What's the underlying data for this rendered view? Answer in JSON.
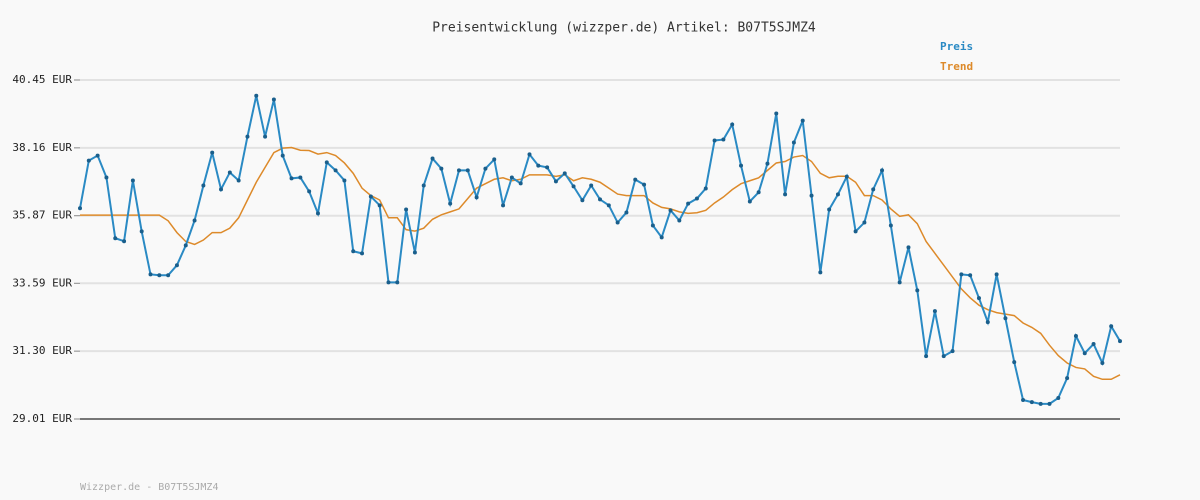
{
  "chart_data": {
    "type": "line",
    "title": "Preisentwicklung (wizzper.de) Artikel: B07T5SJMZ4",
    "footer": "Wizzper.de - B07T5SJMZ4",
    "ylim": [
      29.01,
      40.45
    ],
    "yticks": [
      {
        "value": 29.01,
        "label": "29.01 EUR"
      },
      {
        "value": 31.3,
        "label": "31.30 EUR"
      },
      {
        "value": 33.59,
        "label": "33.59 EUR"
      },
      {
        "value": 35.87,
        "label": "35.87 EUR"
      },
      {
        "value": 38.16,
        "label": "38.16 EUR"
      },
      {
        "value": 40.45,
        "label": "40.45 EUR"
      }
    ],
    "grid": true,
    "legend": "top-right",
    "series": [
      {
        "name": "Preis",
        "color": "#2a8ac4",
        "markers": true,
        "values": [
          36.12,
          37.73,
          37.9,
          37.16,
          35.11,
          35.01,
          37.06,
          35.34,
          33.89,
          33.86,
          33.86,
          34.2,
          34.87,
          35.71,
          36.89,
          38.0,
          36.76,
          37.33,
          37.06,
          38.54,
          39.92,
          38.54,
          39.79,
          37.9,
          37.13,
          37.16,
          36.69,
          35.95,
          37.67,
          37.4,
          37.06,
          34.67,
          34.6,
          36.52,
          36.22,
          33.62,
          33.62,
          36.08,
          34.63,
          36.89,
          37.8,
          37.46,
          36.28,
          37.4,
          37.4,
          36.49,
          37.46,
          37.77,
          36.22,
          37.16,
          36.96,
          37.94,
          37.56,
          37.5,
          37.03,
          37.3,
          36.86,
          36.39,
          36.89,
          36.42,
          36.22,
          35.64,
          35.98,
          37.09,
          36.92,
          35.54,
          35.14,
          36.05,
          35.71,
          36.28,
          36.45,
          36.79,
          38.41,
          38.44,
          38.95,
          37.56,
          36.35,
          36.66,
          37.63,
          39.32,
          36.59,
          38.34,
          39.08,
          36.55,
          33.96,
          36.08,
          36.59,
          37.19,
          35.34,
          35.64,
          36.76,
          37.4,
          35.54,
          33.62,
          34.8,
          33.35,
          31.13,
          32.65,
          31.13,
          31.3,
          33.89,
          33.86,
          33.09,
          32.28,
          33.89,
          32.41,
          30.93,
          29.65,
          29.58,
          29.52,
          29.52,
          29.72,
          30.39,
          31.81,
          31.23,
          31.54,
          30.9,
          32.14,
          31.64
        ]
      },
      {
        "name": "Trend",
        "color": "#dd8a2a",
        "markers": false,
        "values": [
          35.89,
          35.89,
          35.89,
          35.89,
          35.89,
          35.89,
          35.89,
          35.89,
          35.89,
          35.89,
          35.7,
          35.3,
          35.0,
          34.9,
          35.05,
          35.3,
          35.3,
          35.45,
          35.8,
          36.4,
          37.0,
          37.5,
          38.0,
          38.15,
          38.17,
          38.08,
          38.07,
          37.95,
          38.0,
          37.9,
          37.65,
          37.3,
          36.8,
          36.55,
          36.4,
          35.8,
          35.8,
          35.4,
          35.35,
          35.45,
          35.75,
          35.9,
          36.0,
          36.1,
          36.45,
          36.8,
          36.95,
          37.1,
          37.15,
          37.05,
          37.1,
          37.25,
          37.25,
          37.25,
          37.2,
          37.25,
          37.05,
          37.15,
          37.1,
          37.0,
          36.8,
          36.6,
          36.55,
          36.55,
          36.55,
          36.3,
          36.15,
          36.1,
          36.0,
          35.95,
          35.97,
          36.05,
          36.3,
          36.5,
          36.75,
          36.95,
          37.05,
          37.15,
          37.4,
          37.65,
          37.7,
          37.85,
          37.9,
          37.7,
          37.3,
          37.15,
          37.2,
          37.2,
          37.0,
          36.55,
          36.55,
          36.4,
          36.1,
          35.85,
          35.9,
          35.6,
          35.0,
          34.6,
          34.2,
          33.8,
          33.4,
          33.1,
          32.85,
          32.7,
          32.6,
          32.55,
          32.5,
          32.25,
          32.1,
          31.9,
          31.5,
          31.15,
          30.9,
          30.75,
          30.7,
          30.45,
          30.35,
          30.35,
          30.5
        ]
      }
    ]
  }
}
